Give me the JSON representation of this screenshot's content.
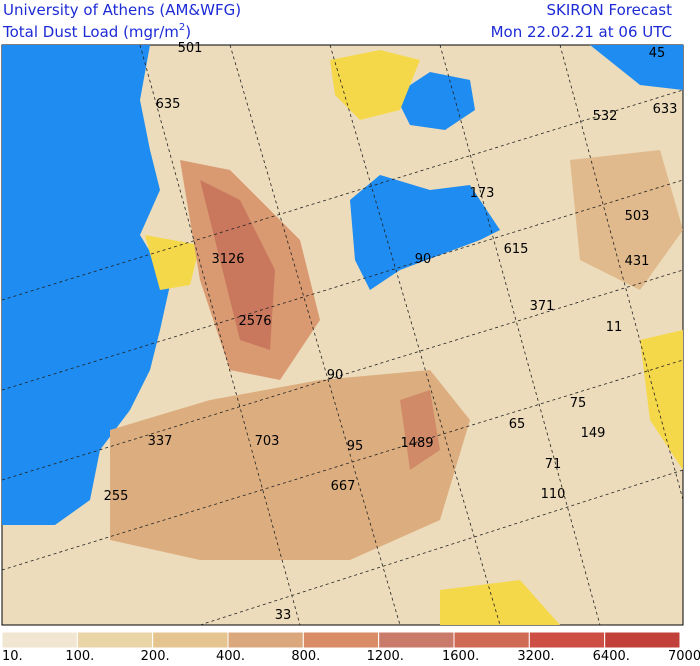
{
  "header": {
    "institution": "University of Athens (AM&WFG)",
    "variable": "Total Dust Load (mgr/m",
    "unit_power": "2",
    "variable_end": ")",
    "product": "SKIRON Forecast",
    "valid_time": "Mon 22.02.21 at 06 UTC"
  },
  "map_labels": [
    501,
    45,
    635,
    532,
    633,
    173,
    503,
    3126,
    90,
    615,
    431,
    371,
    2576,
    11,
    90,
    75,
    65,
    337,
    703,
    95,
    1489,
    149,
    71,
    667,
    110,
    255,
    33
  ],
  "colorbar": {
    "labels": [
      "10.",
      "100.",
      "200.",
      "400.",
      "800.",
      "1200.",
      "1600.",
      "3200.",
      "6400.",
      "7000."
    ]
  }
}
